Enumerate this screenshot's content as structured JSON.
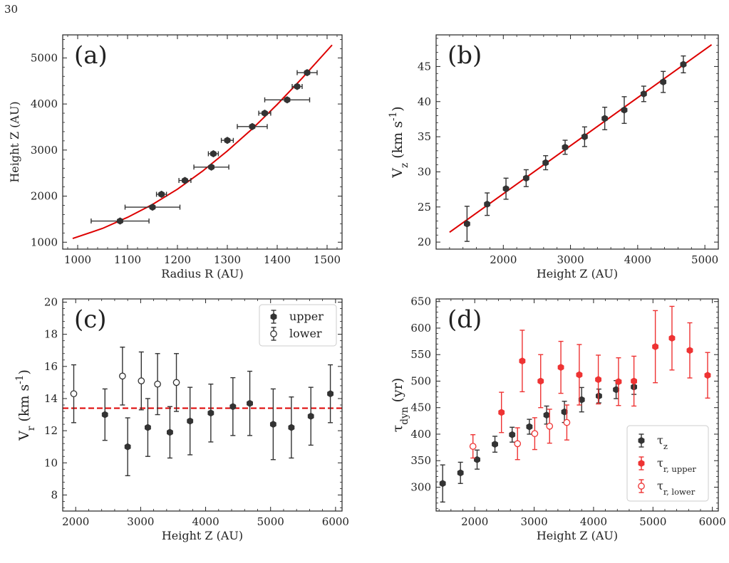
{
  "page_number": "30",
  "chart_data": [
    {
      "id": "a",
      "type": "scatter",
      "panel_label": "(a)",
      "xlabel": "Radius R (AU)",
      "ylabel": "Height Z (AU)",
      "xlim": [
        970,
        1530
      ],
      "ylim": [
        850,
        5500
      ],
      "xticks": [
        1000,
        1100,
        1200,
        1300,
        1400,
        1500
      ],
      "yticks": [
        1000,
        2000,
        3000,
        4000,
        5000
      ],
      "series": [
        {
          "marker": "filled",
          "color": "#333333",
          "points": [
            {
              "x": 1085,
              "y": 1460,
              "xerr": 58
            },
            {
              "x": 1150,
              "y": 1760,
              "xerr": 55
            },
            {
              "x": 1168,
              "y": 2040,
              "xerr": 10
            },
            {
              "x": 1215,
              "y": 2340,
              "xerr": 12
            },
            {
              "x": 1268,
              "y": 2630,
              "xerr": 35
            },
            {
              "x": 1272,
              "y": 2920,
              "xerr": 10
            },
            {
              "x": 1300,
              "y": 3210,
              "xerr": 12
            },
            {
              "x": 1350,
              "y": 3510,
              "xerr": 30
            },
            {
              "x": 1375,
              "y": 3800,
              "xerr": 12
            },
            {
              "x": 1420,
              "y": 4090,
              "xerr": 45
            },
            {
              "x": 1440,
              "y": 4380,
              "xerr": 10
            },
            {
              "x": 1460,
              "y": 4680,
              "xerr": 20
            }
          ]
        }
      ],
      "fit": {
        "color": "#dd0000",
        "x": [
          990,
          1050,
          1100,
          1150,
          1200,
          1250,
          1300,
          1350,
          1400,
          1450,
          1510
        ],
        "y": [
          1080,
          1300,
          1540,
          1820,
          2150,
          2540,
          2980,
          3460,
          3990,
          4560,
          5280
        ]
      }
    },
    {
      "id": "b",
      "type": "scatter",
      "panel_label": "(b)",
      "xlabel": "Height Z (AU)",
      "ylabel": "V_z (km s^-1)",
      "xlim": [
        1000,
        5200
      ],
      "ylim": [
        19,
        49.5
      ],
      "xticks": [
        2000,
        3000,
        4000,
        5000
      ],
      "yticks": [
        20,
        25,
        30,
        35,
        40,
        45
      ],
      "series": [
        {
          "marker": "filled",
          "color": "#333333",
          "points": [
            {
              "x": 1460,
              "y": 22.6,
              "yerr": 2.5
            },
            {
              "x": 1760,
              "y": 25.4,
              "yerr": 1.6
            },
            {
              "x": 2040,
              "y": 27.6,
              "yerr": 1.5
            },
            {
              "x": 2340,
              "y": 29.1,
              "yerr": 1.2
            },
            {
              "x": 2630,
              "y": 31.3,
              "yerr": 1.0
            },
            {
              "x": 2920,
              "y": 33.5,
              "yerr": 1.0
            },
            {
              "x": 3210,
              "y": 35.0,
              "yerr": 1.4
            },
            {
              "x": 3510,
              "y": 37.6,
              "yerr": 1.6
            },
            {
              "x": 3800,
              "y": 38.8,
              "yerr": 1.9
            },
            {
              "x": 4090,
              "y": 41.1,
              "yerr": 1.1
            },
            {
              "x": 4380,
              "y": 42.8,
              "yerr": 1.5
            },
            {
              "x": 4680,
              "y": 45.3,
              "yerr": 1.2
            }
          ]
        }
      ],
      "fit": {
        "color": "#dd0000",
        "x": [
          1200,
          5100
        ],
        "y": [
          21.4,
          48.1
        ]
      }
    },
    {
      "id": "c",
      "type": "scatter",
      "panel_label": "(c)",
      "xlabel": "Height Z (AU)",
      "ylabel": "V_r (km s^-1)",
      "xlim": [
        1800,
        6100
      ],
      "ylim": [
        7,
        20.2
      ],
      "xticks": [
        2000,
        3000,
        4000,
        5000,
        6000
      ],
      "yticks": [
        8,
        10,
        12,
        14,
        16,
        18,
        20
      ],
      "legend": {
        "position": "top-right",
        "entries": [
          "upper",
          "lower"
        ]
      },
      "hline": {
        "y": 13.4,
        "color": "#dd0000",
        "style": "dashed"
      },
      "series": [
        {
          "name": "upper",
          "marker": "filled",
          "color": "#333333",
          "points": [
            {
              "x": 2450,
              "y": 13.0,
              "yerr": 1.6
            },
            {
              "x": 2800,
              "y": 11.0,
              "yerr": 1.8
            },
            {
              "x": 3110,
              "y": 12.2,
              "yerr": 1.8
            },
            {
              "x": 3450,
              "y": 11.9,
              "yerr": 1.6
            },
            {
              "x": 3760,
              "y": 12.6,
              "yerr": 2.1
            },
            {
              "x": 4080,
              "y": 13.1,
              "yerr": 1.8
            },
            {
              "x": 4420,
              "y": 13.5,
              "yerr": 1.8
            },
            {
              "x": 4680,
              "y": 13.7,
              "yerr": 2.0
            },
            {
              "x": 5040,
              "y": 12.4,
              "yerr": 2.2
            },
            {
              "x": 5320,
              "y": 12.2,
              "yerr": 1.9
            },
            {
              "x": 5620,
              "y": 12.9,
              "yerr": 1.8
            },
            {
              "x": 5920,
              "y": 14.3,
              "yerr": 1.8
            }
          ]
        },
        {
          "name": "lower",
          "marker": "open",
          "color": "#333333",
          "points": [
            {
              "x": 1970,
              "y": 14.3,
              "yerr": 1.8
            },
            {
              "x": 2720,
              "y": 15.4,
              "yerr": 1.8
            },
            {
              "x": 3010,
              "y": 15.1,
              "yerr": 1.8
            },
            {
              "x": 3260,
              "y": 14.9,
              "yerr": 1.9
            },
            {
              "x": 3550,
              "y": 15.0,
              "yerr": 1.8
            }
          ]
        }
      ]
    },
    {
      "id": "d",
      "type": "scatter",
      "panel_label": "(d)",
      "xlabel": "Height Z (AU)",
      "ylabel": "τ_dyn (yr)",
      "xlim": [
        1350,
        6100
      ],
      "ylim": [
        255,
        655
      ],
      "xticks": [
        2000,
        3000,
        4000,
        5000,
        6000
      ],
      "yticks": [
        300,
        350,
        400,
        450,
        500,
        550,
        600,
        650
      ],
      "legend": {
        "position": "bottom-right",
        "entries": [
          "τ_z",
          "τ_r,upper",
          "τ_r,lower"
        ]
      },
      "series": [
        {
          "name": "τ_z",
          "marker": "filled",
          "color": "#333333",
          "points": [
            {
              "x": 1460,
              "y": 307,
              "yerr": 35
            },
            {
              "x": 1760,
              "y": 327,
              "yerr": 20
            },
            {
              "x": 2040,
              "y": 352,
              "yerr": 18
            },
            {
              "x": 2340,
              "y": 381,
              "yerr": 15
            },
            {
              "x": 2630,
              "y": 399,
              "yerr": 14
            },
            {
              "x": 2920,
              "y": 414,
              "yerr": 14
            },
            {
              "x": 3210,
              "y": 436,
              "yerr": 17
            },
            {
              "x": 3510,
              "y": 442,
              "yerr": 20
            },
            {
              "x": 3800,
              "y": 465,
              "yerr": 23
            },
            {
              "x": 4090,
              "y": 472,
              "yerr": 13
            },
            {
              "x": 4380,
              "y": 484,
              "yerr": 17
            },
            {
              "x": 4680,
              "y": 489,
              "yerr": 14
            }
          ]
        },
        {
          "name": "τ_r,upper",
          "marker": "filled",
          "color": "#ee3333",
          "points": [
            {
              "x": 2450,
              "y": 441,
              "yerr": 38
            },
            {
              "x": 2800,
              "y": 538,
              "yerr": 58
            },
            {
              "x": 3110,
              "y": 500,
              "yerr": 50
            },
            {
              "x": 3450,
              "y": 526,
              "yerr": 49
            },
            {
              "x": 3760,
              "y": 512,
              "yerr": 57
            },
            {
              "x": 4080,
              "y": 503,
              "yerr": 46
            },
            {
              "x": 4420,
              "y": 499,
              "yerr": 45
            },
            {
              "x": 4680,
              "y": 500,
              "yerr": 47
            },
            {
              "x": 5040,
              "y": 565,
              "yerr": 68
            },
            {
              "x": 5320,
              "y": 581,
              "yerr": 60
            },
            {
              "x": 5620,
              "y": 558,
              "yerr": 52
            },
            {
              "x": 5920,
              "y": 511,
              "yerr": 43
            }
          ]
        },
        {
          "name": "τ_r,lower",
          "marker": "open",
          "color": "#ee3333",
          "points": [
            {
              "x": 1970,
              "y": 377,
              "yerr": 22
            },
            {
              "x": 2720,
              "y": 382,
              "yerr": 30
            },
            {
              "x": 3010,
              "y": 401,
              "yerr": 30
            },
            {
              "x": 3260,
              "y": 415,
              "yerr": 32
            },
            {
              "x": 3550,
              "y": 422,
              "yerr": 33
            }
          ]
        }
      ]
    }
  ]
}
